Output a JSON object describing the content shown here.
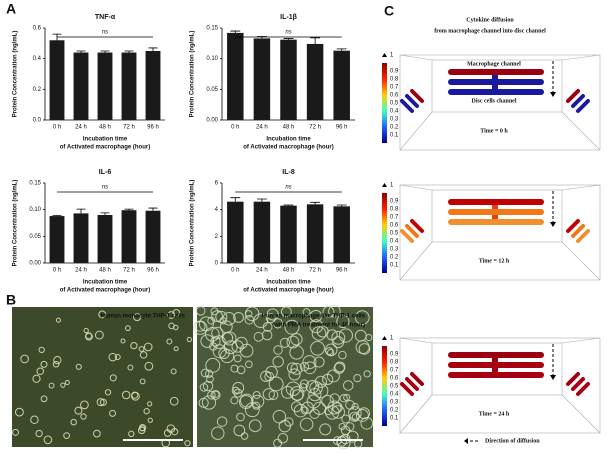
{
  "panel_labels": [
    "A",
    "B",
    "C"
  ],
  "chart_data": [
    {
      "type": "bar",
      "title": "TNF-α",
      "ylabel": "Protein Concentration (ng/mL)",
      "xlabel": [
        "Incubation time",
        "of Activated macrophage (hour)"
      ],
      "categories": [
        "0 h",
        "24 h",
        "48 h",
        "72 h",
        "96 h"
      ],
      "values": [
        0.52,
        0.44,
        0.44,
        0.44,
        0.45
      ],
      "errors": [
        0.04,
        0.01,
        0.01,
        0.01,
        0.02
      ],
      "color": "#1a1a1a",
      "ylim": [
        0,
        0.6
      ],
      "yticks": [
        {
          "value": 0,
          "label": "0.0"
        },
        0.2,
        0.4,
        0.6
      ],
      "annotation": "ns"
    },
    {
      "type": "bar",
      "title": "IL-1β",
      "ylabel": "Protein Concentration (ng/mL)",
      "xlabel": [
        "Incubation time",
        "of Activated macrophage (hour)"
      ],
      "categories": [
        "0 h",
        "24 h",
        "48 h",
        "72 h",
        "96 h"
      ],
      "values": [
        0.142,
        0.133,
        0.131,
        0.124,
        0.113
      ],
      "errors": [
        0.003,
        0.003,
        0.002,
        0.01,
        0.003
      ],
      "color": "#1a1a1a",
      "ylim": [
        0,
        0.15
      ],
      "yticks": [
        {
          "value": 0,
          "label": "0.00"
        },
        0.05,
        {
          "value": 0.1,
          "label": "0.10"
        },
        0.15
      ],
      "annotation": "ns"
    },
    {
      "type": "bar",
      "title": "IL-6",
      "ylabel": "Protein Concentration (ng/mL)",
      "xlabel": [
        "Incubation time",
        "of Activated macrophage (hour)"
      ],
      "categories": [
        "0 h",
        "24 h",
        "48 h",
        "72 h",
        "96 h"
      ],
      "values": [
        0.088,
        0.093,
        0.09,
        0.099,
        0.098
      ],
      "errors": [
        0.001,
        0.008,
        0.004,
        0.002,
        0.005
      ],
      "color": "#1a1a1a",
      "ylim": [
        0,
        0.15
      ],
      "yticks": [
        {
          "value": 0,
          "label": "0.00"
        },
        0.05,
        {
          "value": 0.1,
          "label": "0.10"
        },
        0.15
      ],
      "annotation": "ns"
    },
    {
      "type": "bar",
      "title": "IL-8",
      "ylabel": "Protein Concentration (ng/mL)",
      "xlabel": [
        "Incubation time",
        "of Activated macrophage (hour)"
      ],
      "categories": [
        "0 h",
        "24 h",
        "48 h",
        "72 h",
        "96 h"
      ],
      "values": [
        4.6,
        4.6,
        4.3,
        4.4,
        4.25
      ],
      "errors": [
        0.3,
        0.2,
        0.05,
        0.15,
        0.1
      ],
      "color": "#1a1a1a",
      "ylim": [
        0,
        6
      ],
      "yticks": [
        0,
        2,
        4,
        6
      ],
      "annotation": "ns"
    }
  ],
  "micrographs": [
    {
      "caption": [
        "Human monocyte THP-1 cells"
      ]
    },
    {
      "caption": [
        "Human macrophage like THP-1 cells",
        "(with PMA treatment for 48 hour)"
      ]
    }
  ],
  "diffusion": {
    "title": [
      "Cytokine diffusion",
      "from macrophage channel into disc channel"
    ],
    "colorbar_max": 1,
    "colorbar_ticks": [
      0.9,
      0.8,
      0.7,
      0.6,
      0.5,
      0.4,
      0.3,
      0.2,
      0.1
    ],
    "macrophage_label": "Macrophage channel",
    "disc_label": "Disc cells channel",
    "times": [
      "Time = 0 h",
      "Time = 12 h",
      "Time = 24 h"
    ],
    "legend": "Direction of diffusion"
  }
}
